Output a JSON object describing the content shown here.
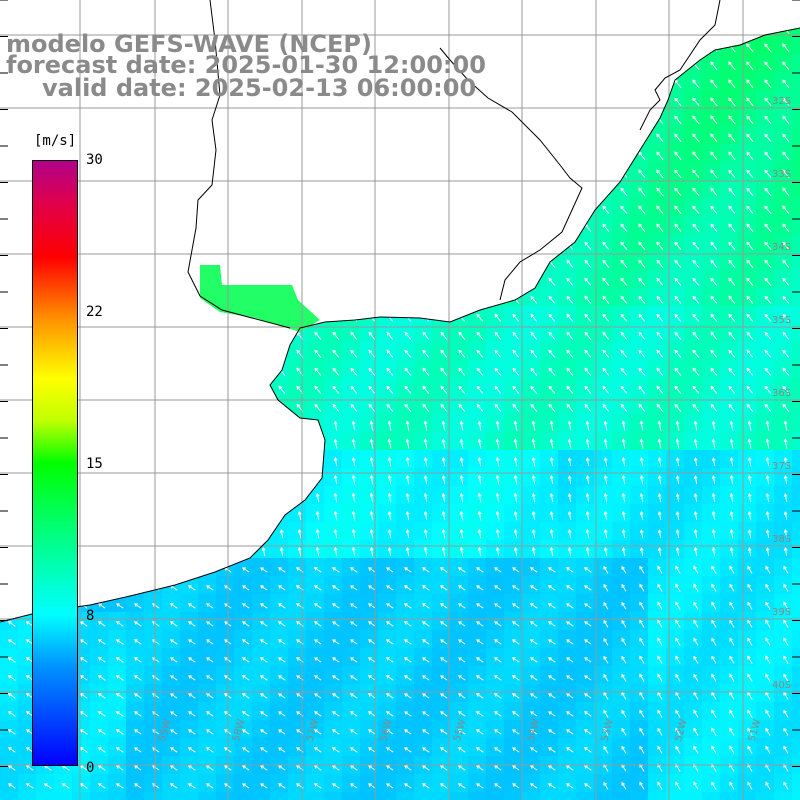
{
  "title": {
    "line1": "modelo GEFS-WAVE (NCEP)",
    "line2": "forecast date: 2025-01-30 12:00:00",
    "line3": "valid date: 2025-02-13 06:00:00"
  },
  "colorbar": {
    "unit": "[m/s]",
    "min": 0,
    "max": 30,
    "ticks": [
      "30",
      "22",
      "15",
      "8",
      "0"
    ],
    "tick_values": [
      30,
      22,
      15,
      8,
      0
    ],
    "colors": [
      "#0000ff",
      "#0090ff",
      "#00ffff",
      "#00ff80",
      "#00ff00",
      "#ffff00",
      "#ff9000",
      "#ff0000",
      "#b0008a"
    ]
  },
  "map": {
    "lon_labels": [
      "59W",
      "58W",
      "57W",
      "56W",
      "55W",
      "54W",
      "53W",
      "52W",
      "51W"
    ],
    "lat_labels": [
      "32S",
      "33S",
      "34S",
      "35S",
      "36S",
      "37S",
      "38S",
      "39S",
      "40S"
    ],
    "land_color": "#ffffff",
    "coast_color": "#000000",
    "grid_color": "#999999",
    "arrow_color": "#ffffff"
  }
}
